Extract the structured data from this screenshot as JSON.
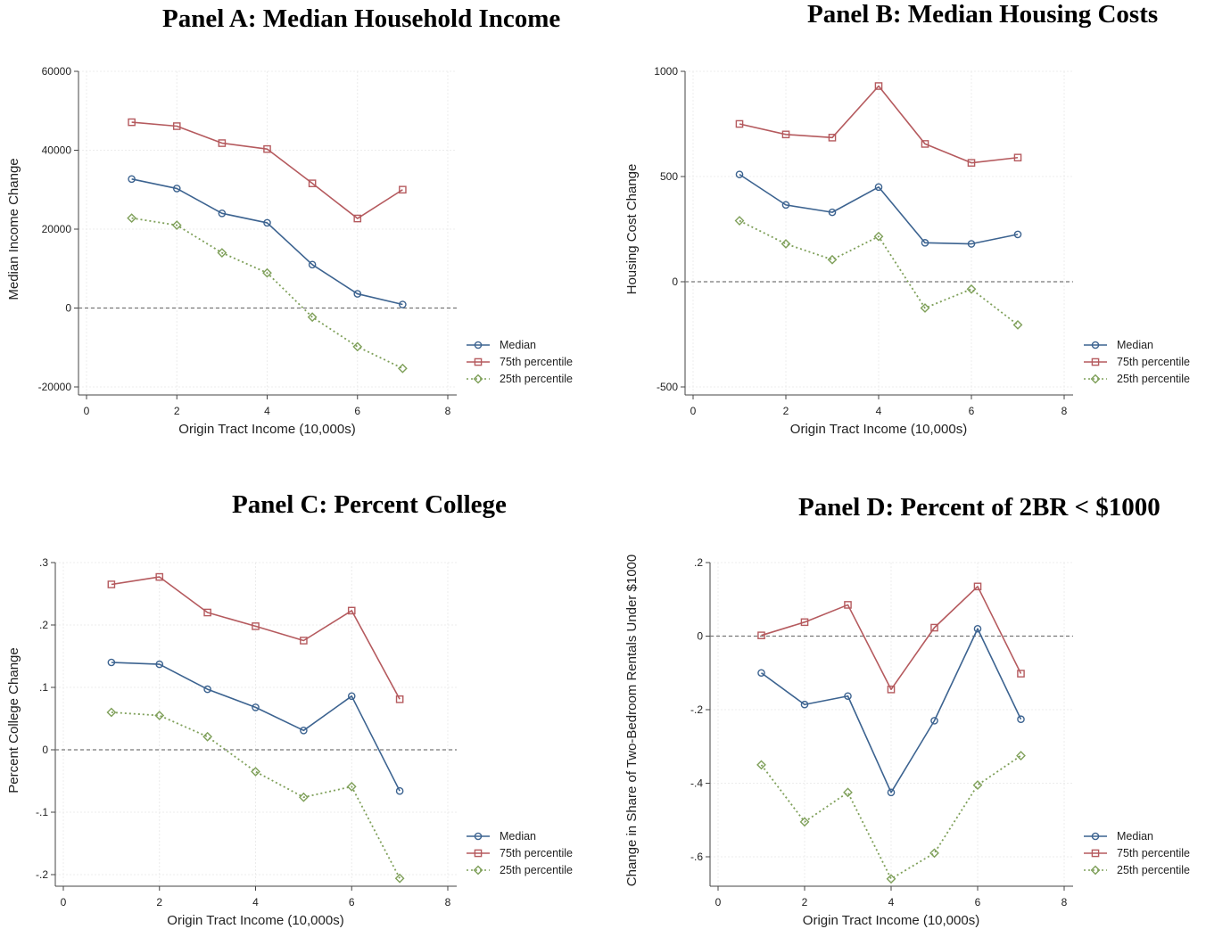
{
  "chart_data": [
    {
      "type": "line",
      "title": "Panel A: Median Household Income",
      "xlabel": "Origin Tract Income (10,000s)",
      "ylabel": "Median Income Change",
      "xlim": [
        0,
        8
      ],
      "ylim": [
        -20000,
        60000
      ],
      "xticks": [
        0,
        2,
        4,
        6,
        8
      ],
      "yticks": [
        -20000,
        0,
        20000,
        40000,
        60000
      ],
      "ytick_labels": [
        "-20000",
        "0",
        "20000",
        "40000",
        "60000"
      ],
      "reference_line": 0,
      "grid": true,
      "legend_position": "bottom-right",
      "x": [
        1,
        2,
        3,
        4,
        5,
        6,
        7
      ],
      "series": [
        {
          "name": "Median",
          "color": "#3c6390",
          "marker": "circle",
          "dash": "solid",
          "values": [
            32700,
            30300,
            24000,
            21600,
            11000,
            3600,
            900
          ]
        },
        {
          "name": "75th percentile",
          "color": "#b55a5e",
          "marker": "square",
          "dash": "solid",
          "values": [
            47100,
            46100,
            41800,
            40300,
            31600,
            22700,
            30000
          ]
        },
        {
          "name": "25th percentile",
          "color": "#7fa05a",
          "marker": "diamond",
          "dash": "dotted",
          "values": [
            22800,
            21000,
            14000,
            8900,
            -2300,
            -9800,
            -15300
          ]
        }
      ]
    },
    {
      "type": "line",
      "title": "Panel B: Median Housing Costs",
      "xlabel": "Origin Tract Income (10,000s)",
      "ylabel": "Housing Cost Change",
      "xlim": [
        0,
        8
      ],
      "ylim": [
        -500,
        1000
      ],
      "xticks": [
        0,
        2,
        4,
        6,
        8
      ],
      "yticks": [
        -500,
        0,
        500,
        1000
      ],
      "ytick_labels": [
        "-500",
        "0",
        "500",
        "1000"
      ],
      "reference_line": 0,
      "grid": true,
      "legend_position": "bottom-right",
      "x": [
        1,
        2,
        3,
        4,
        5,
        6,
        7
      ],
      "series": [
        {
          "name": "Median",
          "color": "#3c6390",
          "marker": "circle",
          "dash": "solid",
          "values": [
            510,
            365,
            330,
            450,
            185,
            180,
            225
          ]
        },
        {
          "name": "75th percentile",
          "color": "#b55a5e",
          "marker": "square",
          "dash": "solid",
          "values": [
            750,
            700,
            685,
            930,
            655,
            565,
            590
          ]
        },
        {
          "name": "25th percentile",
          "color": "#7fa05a",
          "marker": "diamond",
          "dash": "dotted",
          "values": [
            290,
            180,
            105,
            215,
            -125,
            -35,
            -205
          ]
        }
      ]
    },
    {
      "type": "line",
      "title": "Panel C: Percent College",
      "xlabel": "Origin Tract Income (10,000s)",
      "ylabel": "Percent College Change",
      "xlim": [
        0,
        8
      ],
      "ylim": [
        -0.2,
        0.3
      ],
      "xticks": [
        0,
        2,
        4,
        6,
        8
      ],
      "yticks": [
        -0.2,
        -0.1,
        0,
        0.1,
        0.2,
        0.3
      ],
      "ytick_labels": [
        "-.2",
        "-.1",
        "0",
        ".1",
        ".2",
        ".3"
      ],
      "reference_line": 0,
      "grid": true,
      "legend_position": "bottom-right",
      "x": [
        1,
        2,
        3,
        4,
        5,
        6,
        7
      ],
      "series": [
        {
          "name": "Median",
          "color": "#3c6390",
          "marker": "circle",
          "dash": "solid",
          "values": [
            0.14,
            0.137,
            0.097,
            0.068,
            0.031,
            0.086,
            -0.066
          ]
        },
        {
          "name": "75th percentile",
          "color": "#b55a5e",
          "marker": "square",
          "dash": "solid",
          "values": [
            0.265,
            0.277,
            0.22,
            0.198,
            0.175,
            0.223,
            0.081
          ]
        },
        {
          "name": "25th percentile",
          "color": "#7fa05a",
          "marker": "diamond",
          "dash": "dotted",
          "values": [
            0.06,
            0.055,
            0.021,
            -0.035,
            -0.076,
            -0.059,
            -0.206
          ]
        }
      ]
    },
    {
      "type": "line",
      "title": "Panel D: Percent of 2BR < $1000",
      "xlabel": "Origin Tract Income (10,000s)",
      "ylabel": "Change in Share of Two-Bedroom Rentals Under $1000",
      "xlim": [
        0,
        8
      ],
      "ylim": [
        -0.65,
        0.2
      ],
      "xticks": [
        0,
        2,
        4,
        6,
        8
      ],
      "yticks": [
        -0.6,
        -0.4,
        -0.2,
        0,
        0.2
      ],
      "ytick_labels": [
        "-.6",
        "-.4",
        "-.2",
        "0",
        ".2"
      ],
      "reference_line": 0,
      "grid": true,
      "legend_position": "bottom-right",
      "x": [
        1,
        2,
        3,
        4,
        5,
        6,
        7
      ],
      "series": [
        {
          "name": "Median",
          "color": "#3c6390",
          "marker": "circle",
          "dash": "solid",
          "values": [
            -0.1,
            -0.186,
            -0.163,
            -0.425,
            -0.23,
            0.02,
            -0.226
          ]
        },
        {
          "name": "75th percentile",
          "color": "#b55a5e",
          "marker": "square",
          "dash": "solid",
          "values": [
            0.002,
            0.038,
            0.085,
            -0.145,
            0.023,
            0.135,
            -0.102
          ]
        },
        {
          "name": "25th percentile",
          "color": "#7fa05a",
          "marker": "diamond",
          "dash": "dotted",
          "values": [
            -0.35,
            -0.505,
            -0.425,
            -0.66,
            -0.59,
            -0.405,
            -0.325
          ]
        }
      ]
    }
  ]
}
